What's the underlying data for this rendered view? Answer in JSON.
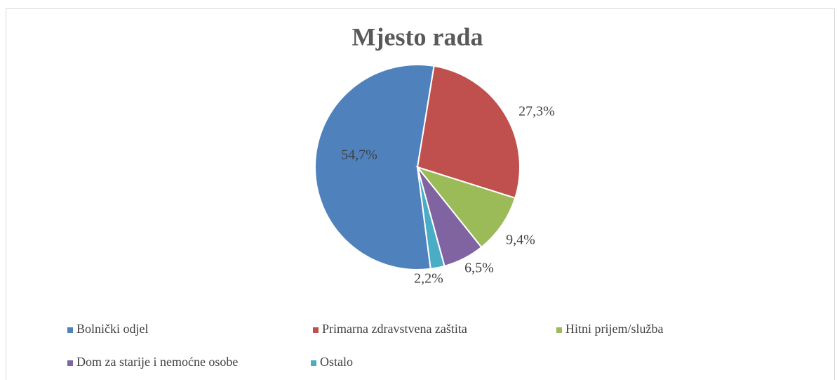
{
  "chart_data": {
    "type": "pie",
    "title": "Mjesto rada",
    "categories": [
      "Bolnički odjel",
      "Primarna zdravstvena zaštita",
      "Hitni prijem/služba",
      "Dom za starije i nemoćne osobe",
      "Ostalo"
    ],
    "values": [
      54.7,
      27.3,
      9.4,
      6.5,
      2.2
    ],
    "value_labels": [
      "54,7%",
      "27,3%",
      "9,4%",
      "6,5%",
      "2,2%"
    ],
    "colors": [
      "#4f81bd",
      "#c0504d",
      "#9bbb59",
      "#8064a2",
      "#4bacc6"
    ],
    "legend": "bottom"
  }
}
